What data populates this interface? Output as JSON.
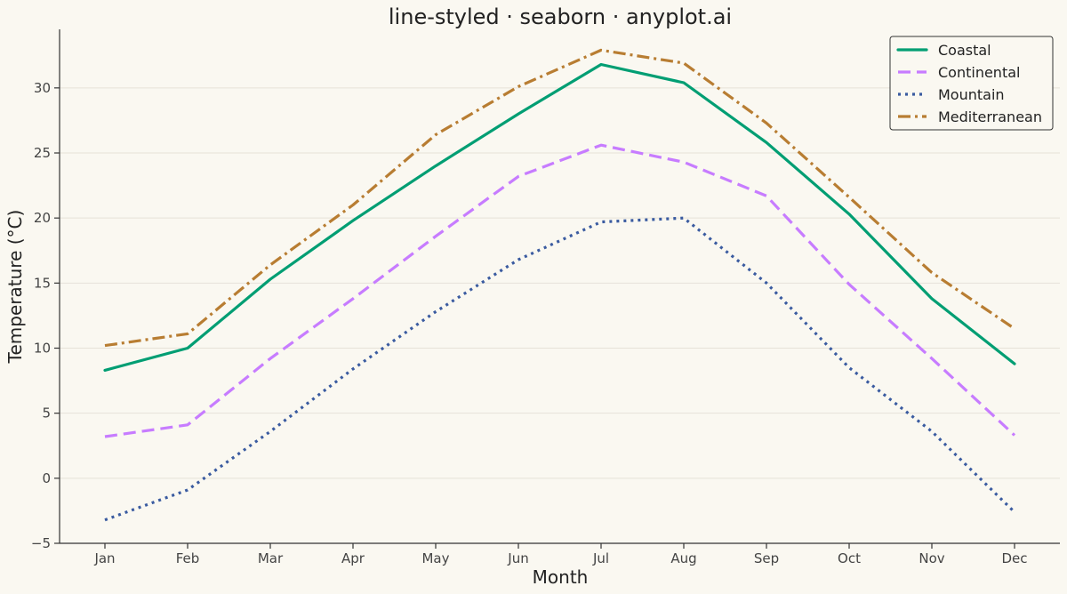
{
  "chart_data": {
    "type": "line",
    "title": "line-styled · seaborn · anyplot.ai",
    "xlabel": "Month",
    "ylabel": "Temperature (°C)",
    "categories": [
      "Jan",
      "Feb",
      "Mar",
      "Apr",
      "May",
      "Jun",
      "Jul",
      "Aug",
      "Sep",
      "Oct",
      "Nov",
      "Dec"
    ],
    "ylim": [
      -5,
      34.5
    ],
    "yticks": [
      -5,
      0,
      5,
      10,
      15,
      20,
      25,
      30
    ],
    "ytick_labels": [
      "−5",
      "0",
      "5",
      "10",
      "15",
      "20",
      "25",
      "30"
    ],
    "grid": "horizontal",
    "legend_position": "top-right",
    "series": [
      {
        "name": "Coastal",
        "color": "#009E73",
        "dash": "solid",
        "values": [
          8.3,
          10.0,
          15.3,
          19.8,
          24.0,
          28.0,
          31.8,
          30.4,
          25.8,
          20.3,
          13.8,
          8.8
        ]
      },
      {
        "name": "Continental",
        "color": "#C77CFF",
        "dash": "dashed",
        "values": [
          3.2,
          4.1,
          9.2,
          13.8,
          18.6,
          23.2,
          25.6,
          24.3,
          21.7,
          14.9,
          9.2,
          3.3
        ]
      },
      {
        "name": "Mountain",
        "color": "#3A5BA0",
        "dash": "dotted",
        "values": [
          -3.2,
          -0.9,
          3.6,
          8.4,
          12.8,
          16.8,
          19.7,
          20.0,
          15.0,
          8.5,
          3.6,
          -2.6
        ]
      },
      {
        "name": "Mediterranean",
        "color": "#B87D32",
        "dash": "dashdot",
        "values": [
          10.2,
          11.1,
          16.4,
          21.0,
          26.4,
          30.1,
          32.9,
          31.9,
          27.3,
          21.6,
          15.8,
          11.5
        ]
      }
    ]
  }
}
